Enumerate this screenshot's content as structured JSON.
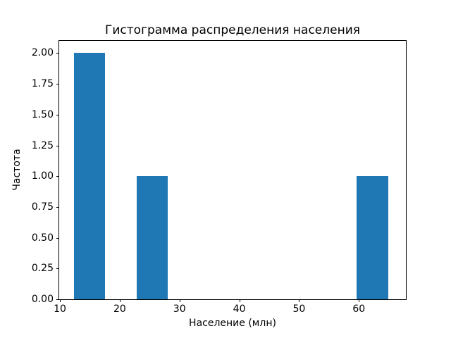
{
  "chart_data": {
    "type": "bar",
    "subtype": "histogram",
    "title": "Гистограмма распределения населения",
    "xlabel": "Население (млн)",
    "ylabel": "Частота",
    "bar_color": "#1f77b4",
    "background_color": "#ffffff",
    "axis_color": "#000000",
    "grid": false,
    "legend": null,
    "xlim": [
      9.88,
      67.86
    ],
    "ylim": [
      0,
      2.1
    ],
    "xticks": [
      {
        "value": 10,
        "label": "10"
      },
      {
        "value": 20,
        "label": "20"
      },
      {
        "value": 30,
        "label": "30"
      },
      {
        "value": 40,
        "label": "40"
      },
      {
        "value": 50,
        "label": "50"
      },
      {
        "value": 60,
        "label": "60"
      }
    ],
    "yticks": [
      {
        "value": 0.0,
        "label": "0.00"
      },
      {
        "value": 0.25,
        "label": "0.25"
      },
      {
        "value": 0.5,
        "label": "0.50"
      },
      {
        "value": 0.75,
        "label": "0.75"
      },
      {
        "value": 1.0,
        "label": "1.00"
      },
      {
        "value": 1.25,
        "label": "1.25"
      },
      {
        "value": 1.5,
        "label": "1.50"
      },
      {
        "value": 1.75,
        "label": "1.75"
      },
      {
        "value": 2.0,
        "label": "2.00"
      }
    ],
    "bin_edges": [
      12.3,
      17.56,
      22.82,
      28.08,
      33.34,
      38.6,
      43.86,
      49.12,
      54.38,
      59.64,
      64.9
    ],
    "counts": [
      2,
      0,
      1,
      0,
      0,
      0,
      0,
      0,
      0,
      1
    ]
  }
}
